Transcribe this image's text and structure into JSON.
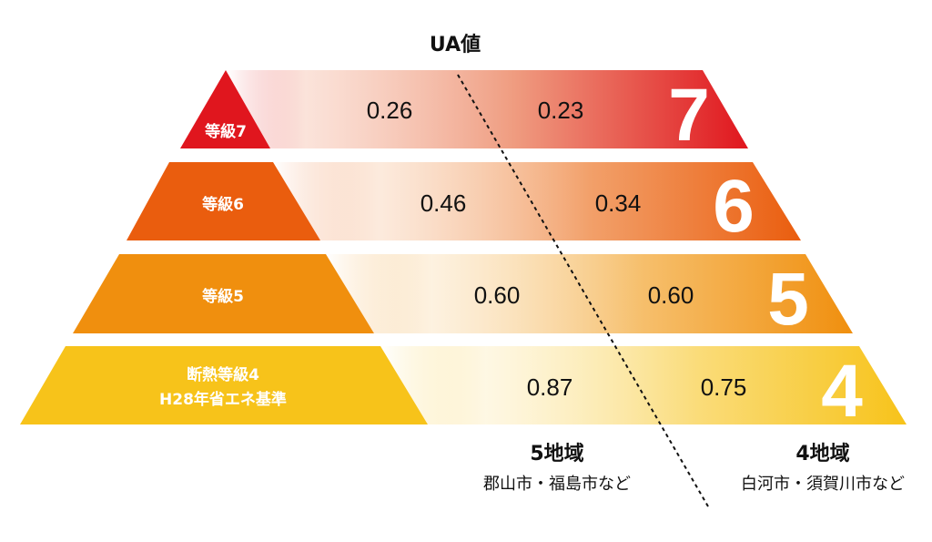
{
  "header": {
    "ua_label": "UA値"
  },
  "chart_data": {
    "type": "table",
    "title": "UA値",
    "columns": [
      {
        "region": "5地域",
        "areas": "郡山市・福島市など"
      },
      {
        "region": "4地域",
        "areas": "白河市・須賀川市など"
      }
    ],
    "rows": [
      {
        "grade": "7",
        "label_lines": [
          "等級7"
        ],
        "values": [
          0.26,
          0.23
        ],
        "display": [
          "0.26",
          "0.23"
        ],
        "color": "#e0161e"
      },
      {
        "grade": "6",
        "label_lines": [
          "等級6"
        ],
        "values": [
          0.46,
          0.34
        ],
        "display": [
          "0.46",
          "0.34"
        ],
        "color": "#ea5d0e"
      },
      {
        "grade": "5",
        "label_lines": [
          "等級5"
        ],
        "values": [
          0.6,
          0.6
        ],
        "display": [
          "0.60",
          "0.60"
        ],
        "color": "#f08f0e"
      },
      {
        "grade": "4",
        "label_lines": [
          "断熱等級4",
          "H28年省エネ基準"
        ],
        "values": [
          0.87,
          0.75
        ],
        "display": [
          "0.87",
          "0.75"
        ],
        "color": "#f7c31a"
      }
    ]
  },
  "regions": [
    {
      "name": "5地域",
      "areas": "郡山市・福島市など"
    },
    {
      "name": "4地域",
      "areas": "白河市・須賀川市など"
    }
  ]
}
